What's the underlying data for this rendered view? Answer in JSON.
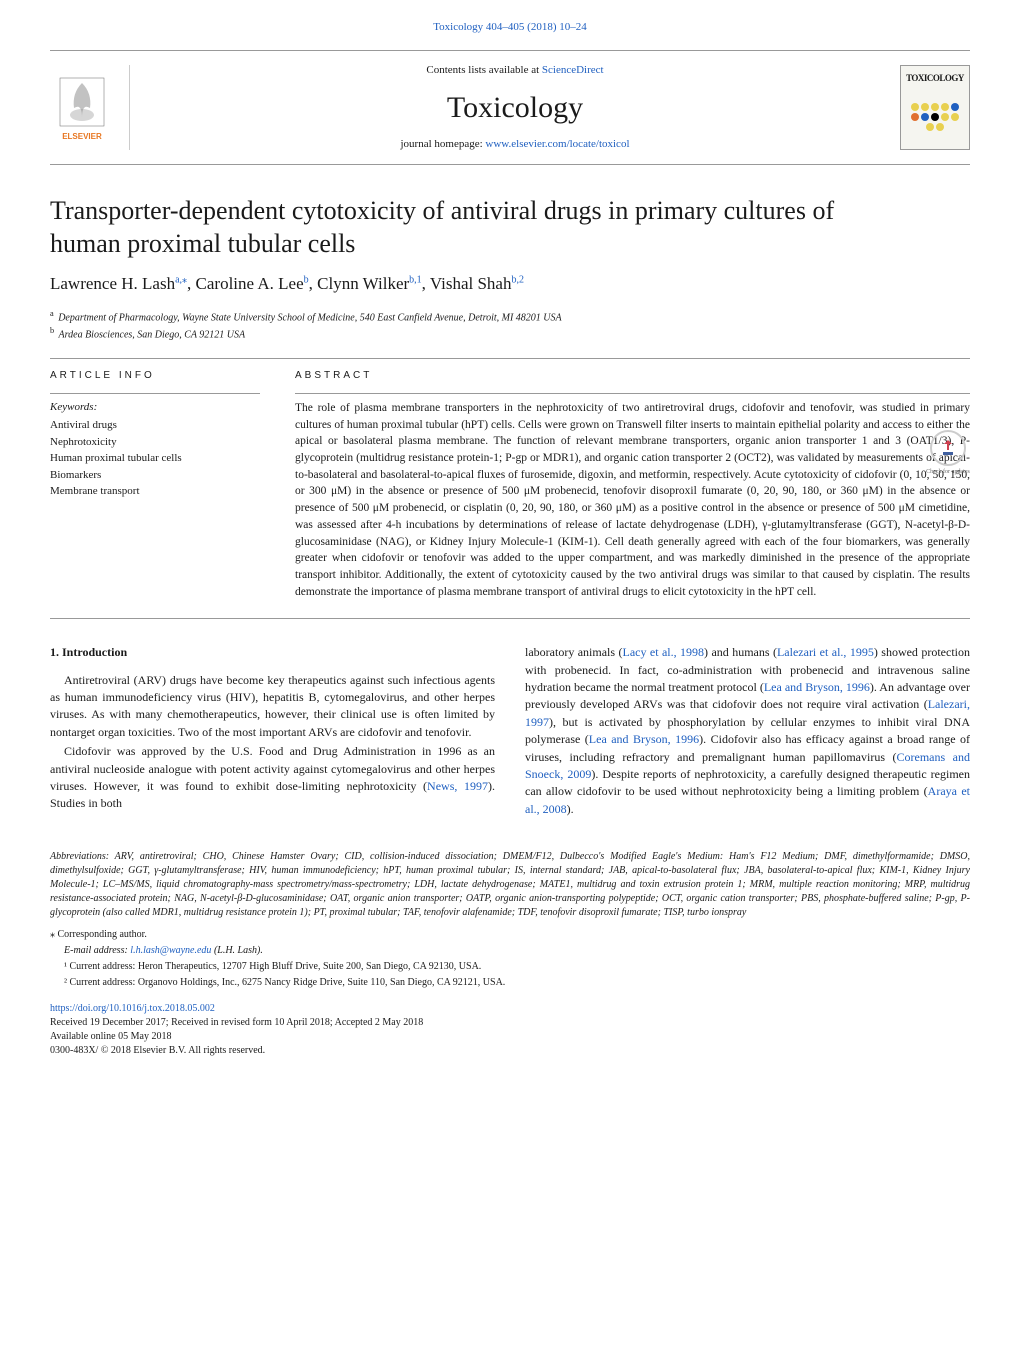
{
  "header": {
    "journal_volume_link": "Toxicology 404–405 (2018) 10–24",
    "contents_prefix": "Contents lists available at ",
    "contents_link_text": "ScienceDirect",
    "journal_name": "Toxicology",
    "homepage_prefix": "journal homepage: ",
    "homepage_url": "www.elsevier.com/locate/toxicol",
    "publisher_name": "ELSEVIER",
    "cover_title": "TOXICOLOGY",
    "cover_dot_colors": [
      "#e8d050",
      "#e8d050",
      "#e8d050",
      "#e8d050",
      "#2060c0",
      "#e07030",
      "#2060c0",
      "#000",
      "#e8d050",
      "#e8d050",
      "#e8d050",
      "#e8d050"
    ],
    "check_updates_label": "Check for updates"
  },
  "article": {
    "title": "Transporter-dependent cytotoxicity of antiviral drugs in primary cultures of human proximal tubular cells",
    "authors_html": "Lawrence H. Lash<sup>a,⁎</sup>, Caroline A. Lee<sup>b</sup>, Clynn Wilker<sup>b,1</sup>, Vishal Shah<sup>b,2</sup>",
    "affiliation_a": "Department of Pharmacology, Wayne State University School of Medicine, 540 East Canfield Avenue, Detroit, MI 48201 USA",
    "affiliation_b": "Ardea Biosciences, San Diego, CA 92121 USA"
  },
  "info": {
    "section_label": "ARTICLE INFO",
    "keywords_label": "Keywords:",
    "keywords": [
      "Antiviral drugs",
      "Nephrotoxicity",
      "Human proximal tubular cells",
      "Biomarkers",
      "Membrane transport"
    ]
  },
  "abstract": {
    "section_label": "ABSTRACT",
    "text": "The role of plasma membrane transporters in the nephrotoxicity of two antiretroviral drugs, cidofovir and tenofovir, was studied in primary cultures of human proximal tubular (hPT) cells. Cells were grown on Transwell filter inserts to maintain epithelial polarity and access to either the apical or basolateral plasma membrane. The function of relevant membrane transporters, organic anion transporter 1 and 3 (OAT1/3), P-glycoprotein (multidrug resistance protein-1; P-gp or MDR1), and organic cation transporter 2 (OCT2), was validated by measurements of apical-to-basolateral and basolateral-to-apical fluxes of furosemide, digoxin, and metformin, respectively. Acute cytotoxicity of cidofovir (0, 10, 50, 150, or 300 μM) in the absence or presence of 500 μM probenecid, tenofovir disoproxil fumarate (0, 20, 90, 180, or 360 μM) in the absence or presence of 500 μM probenecid, or cisplatin (0, 20, 90, 180, or 360 μM) as a positive control in the absence or presence of 500 μM cimetidine, was assessed after 4-h incubations by determinations of release of lactate dehydrogenase (LDH), γ-glutamyltransferase (GGT), N-acetyl-β-D-glucosaminidase (NAG), or Kidney Injury Molecule-1 (KIM-1). Cell death generally agreed with each of the four biomarkers, was generally greater when cidofovir or tenofovir was added to the upper compartment, and was markedly diminished in the presence of the appropriate transport inhibitor. Additionally, the extent of cytotoxicity caused by the two antiviral drugs was similar to that caused by cisplatin. The results demonstrate the importance of plasma membrane transport of antiviral drugs to elicit cytotoxicity in the hPT cell."
  },
  "body": {
    "intro_heading": "1. Introduction",
    "col1_p1": "Antiretroviral (ARV) drugs have become key therapeutics against such infectious agents as human immunodeficiency virus (HIV), hepatitis B, cytomegalovirus, and other herpes viruses. As with many chemotherapeutics, however, their clinical use is often limited by nontarget organ toxicities. Two of the most important ARVs are cidofovir and tenofovir.",
    "col1_p2_pre": "Cidofovir was approved by the U.S. Food and Drug Administration in 1996 as an antiviral nucleoside analogue with potent activity against cytomegalovirus and other herpes viruses. However, it was found to exhibit dose-limiting nephrotoxicity (",
    "col1_p2_cite1": "News, 1997",
    "col1_p2_post": "). Studies in both",
    "col2_pre": "laboratory animals (",
    "col2_cite1": "Lacy et al., 1998",
    "col2_mid1": ") and humans (",
    "col2_cite2": "Lalezari et al., 1995",
    "col2_mid2": ") showed protection with probenecid. In fact, co-administration with probenecid and intravenous saline hydration became the normal treatment protocol (",
    "col2_cite3": "Lea and Bryson, 1996",
    "col2_mid3": "). An advantage over previously developed ARVs was that cidofovir does not require viral activation (",
    "col2_cite4": "Lalezari, 1997",
    "col2_mid4": "), but is activated by phosphorylation by cellular enzymes to inhibit viral DNA polymerase (",
    "col2_cite5": "Lea and Bryson, 1996",
    "col2_mid5": "). Cidofovir also has efficacy against a broad range of viruses, including refractory and premalignant human papillomavirus (",
    "col2_cite6": "Coremans and Snoeck, 2009",
    "col2_mid6": "). Despite reports of nephrotoxicity, a carefully designed therapeutic regimen can allow cidofovir to be used without nephrotoxicity being a limiting problem (",
    "col2_cite7": "Araya et al., 2008",
    "col2_post": ")."
  },
  "footer": {
    "abbr_label": "Abbreviations:",
    "abbreviations": " ARV, antiretroviral; CHO, Chinese Hamster Ovary; CID, collision-induced dissociation; DMEM/F12, Dulbecco's Modified Eagle's Medium: Ham's F12 Medium; DMF, dimethylformamide; DMSO, dimethylsulfoxide; GGT, γ-glutamyltransferase; HIV, human immunodeficiency; hPT, human proximal tubular; IS, internal standard; JAB, apical-to-basolateral flux; JBA, basolateral-to-apical flux; KIM-1, Kidney Injury Molecule-1; LC–MS/MS, liquid chromatography-mass spectrometry/mass-spectrometry; LDH, lactate dehydrogenase; MATE1, multidrug and toxin extrusion protein 1; MRM, multiple reaction monitoring; MRP, multidrug resistance-associated protein; NAG, N-acetyl-β-D-glucosaminidase; OAT, organic anion transporter; OATP, organic anion-transporting polypeptide; OCT, organic cation transporter; PBS, phosphate-buffered saline; P-gp, P-glycoprotein (also called MDR1, multidrug resistance protein 1); PT, proximal tubular; TAF, tenofovir alafenamide; TDF, tenofovir disoproxil fumarate; TISP, turbo ionspray",
    "corresponding": "⁎ Corresponding author.",
    "email_label": "E-mail address: ",
    "email": "l.h.lash@wayne.edu",
    "email_name": " (L.H. Lash).",
    "footnote1": "¹ Current address: Heron Therapeutics, 12707 High Bluff Drive, Suite 200, San Diego, CA 92130, USA.",
    "footnote2": "² Current address: Organovo Holdings, Inc., 6275 Nancy Ridge Drive, Suite 110, San Diego, CA 92121, USA.",
    "doi": "https://doi.org/10.1016/j.tox.2018.05.002",
    "received": "Received 19 December 2017; Received in revised form 10 April 2018; Accepted 2 May 2018",
    "available": "Available online 05 May 2018",
    "copyright": "0300-483X/ © 2018 Elsevier B.V. All rights reserved."
  },
  "colors": {
    "link": "#2060c0",
    "text": "#1a1a1a",
    "border": "#999999",
    "elsevier_orange": "#e87722"
  }
}
